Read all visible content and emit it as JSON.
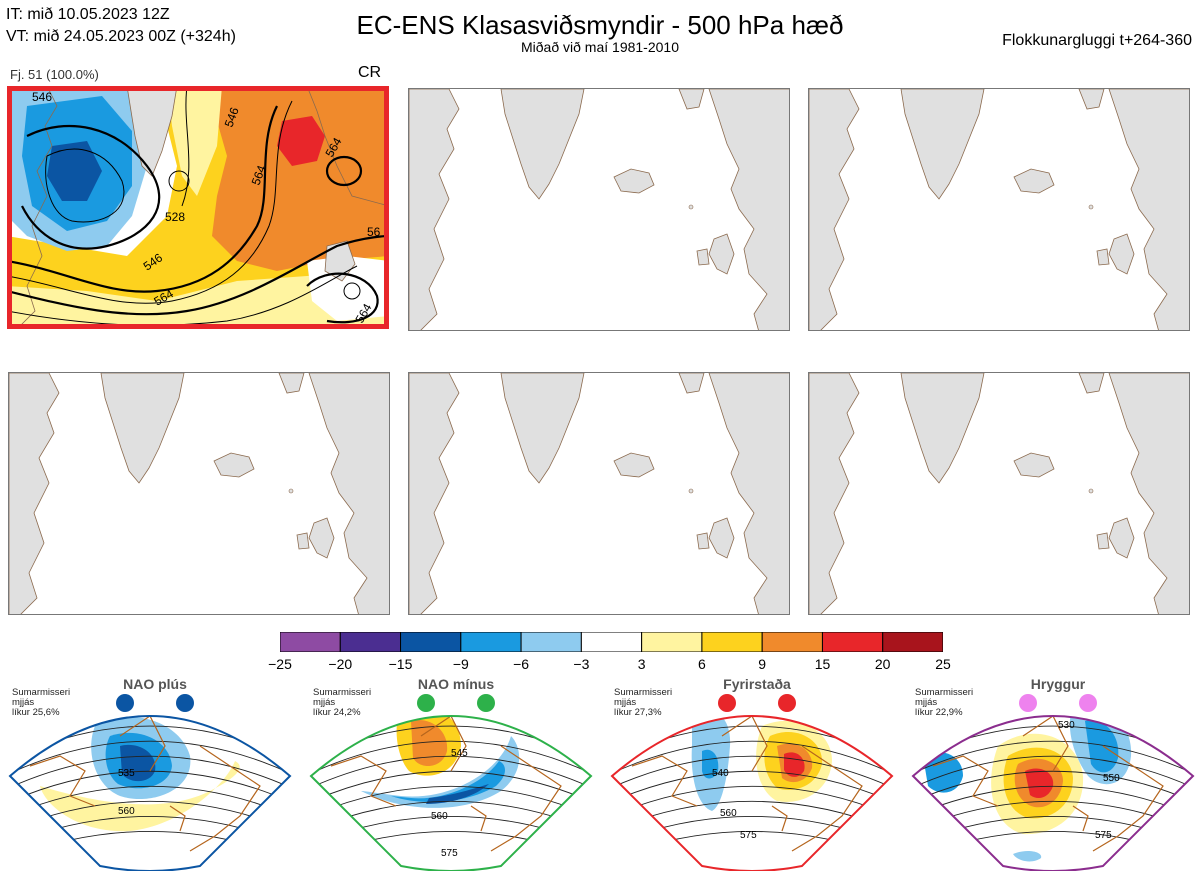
{
  "header": {
    "init_time": "IT: mið 10.05.2023 12Z",
    "valid_time": "VT: mið 24.05.2023 00Z  (+324h)",
    "title": "EC-ENS Klasasviðsmyndir - 500 hPa hæð",
    "subtitle": "Miðað við maí 1981-2010",
    "window": "Flokkunargluggi t+264-360"
  },
  "cluster_panel": {
    "members_label": "Fj. 51 (100.0%)",
    "regime_code": "CR",
    "contour_labels": [
      "546",
      "546",
      "546",
      "564",
      "564",
      "564",
      "528",
      "56",
      "564"
    ]
  },
  "colors": {
    "land": "#e0e0e0",
    "coast": "#8b6a4e",
    "active_border": "#e8262a"
  },
  "colorbar": {
    "ticks": [
      "−25",
      "−20",
      "−15",
      "−9",
      "−6",
      "−3",
      "3",
      "6",
      "9",
      "15",
      "20",
      "25"
    ],
    "colors": [
      "#8e4ba3",
      "#4b2e91",
      "#0b55a3",
      "#1a9ae0",
      "#8ecbef",
      "#ffffff",
      "#fff4a0",
      "#fdd21e",
      "#f08a2c",
      "#e8262a",
      "#a8141c"
    ]
  },
  "regimes": [
    {
      "name": "NAO plús",
      "season": "Sumarmisseri",
      "smooth": "mjjás",
      "prob": "líkur 25,6%",
      "color": "#0b55a3",
      "contours": [
        "535",
        "560"
      ]
    },
    {
      "name": "NAO mínus",
      "season": "Sumarmisseri",
      "smooth": "mjjás",
      "prob": "líkur 24,2%",
      "color": "#2db14a",
      "contours": [
        "545",
        "560",
        "575"
      ]
    },
    {
      "name": "Fyrirstaða",
      "season": "Sumarmisseri",
      "smooth": "mjjás",
      "prob": "líkur 27,3%",
      "color": "#e8262a",
      "contours": [
        "540",
        "560",
        "575"
      ]
    },
    {
      "name": "Hryggur",
      "season": "Sumarmisseri",
      "smooth": "mjjás",
      "prob": "líkur 22,9%",
      "color": "#8b2d8e",
      "contours": [
        "530",
        "550",
        "575"
      ]
    }
  ]
}
